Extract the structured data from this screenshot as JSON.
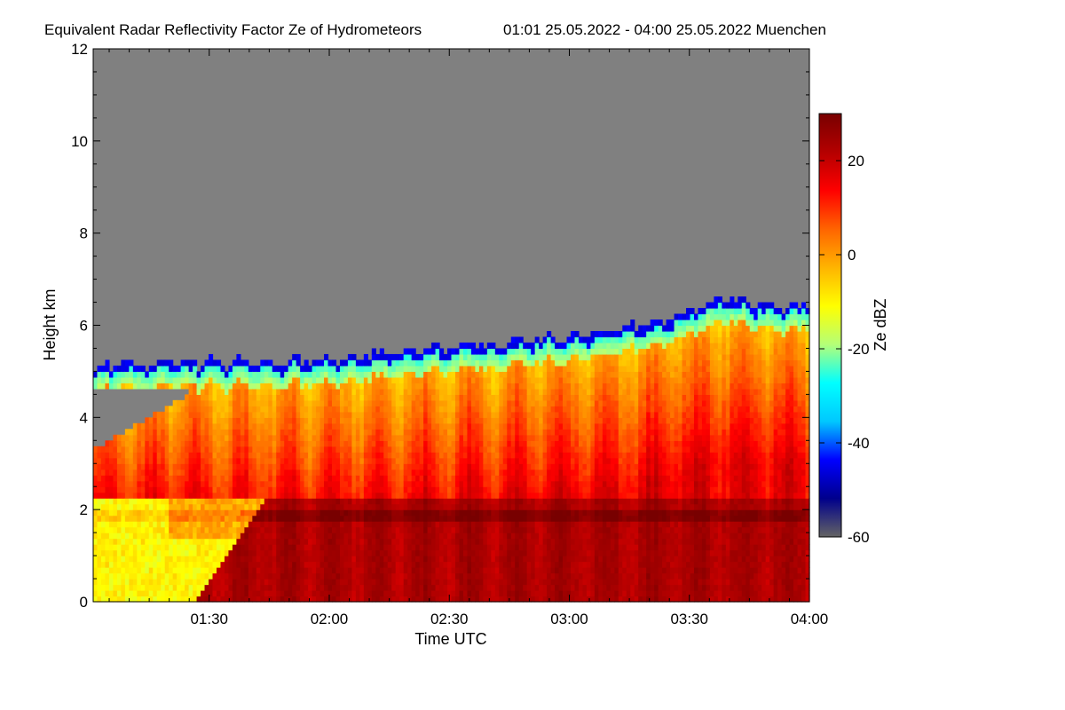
{
  "chart_data": {
    "type": "heatmap",
    "title": "Equivalent Radar Reflectivity Factor Ze of Hydrometeors",
    "subtitle": "01:01 25.05.2022 - 04:00 25.05.2022 Muenchen",
    "xlabel": "Time UTC",
    "ylabel": "Height km",
    "colorbar_label": "Ze dBZ",
    "x_range_minutes": [
      61,
      240
    ],
    "x_ticks": [
      {
        "label": "01:30",
        "minutes": 90
      },
      {
        "label": "02:00",
        "minutes": 120
      },
      {
        "label": "02:30",
        "minutes": 150
      },
      {
        "label": "03:00",
        "minutes": 180
      },
      {
        "label": "03:30",
        "minutes": 210
      },
      {
        "label": "04:00",
        "minutes": 240
      }
    ],
    "ylim": [
      0,
      12
    ],
    "y_ticks": [
      0,
      2,
      4,
      6,
      8,
      10,
      12
    ],
    "colorbar_range": [
      -60,
      30
    ],
    "colorbar_ticks": [
      -60,
      -40,
      -20,
      0,
      20
    ],
    "background_color": "#808080",
    "colormap": [
      "#646464",
      "#00008c",
      "#0000ff",
      "#00c8ff",
      "#00ffff",
      "#b4ff78",
      "#ffff00",
      "#ffb400",
      "#ff6400",
      "#ff0000",
      "#b40000",
      "#780000"
    ],
    "cloud_top_km": [
      {
        "t": 61,
        "h": 5.1
      },
      {
        "t": 70,
        "h": 5.15
      },
      {
        "t": 80,
        "h": 5.2
      },
      {
        "t": 90,
        "h": 5.2
      },
      {
        "t": 100,
        "h": 5.2
      },
      {
        "t": 110,
        "h": 5.2
      },
      {
        "t": 120,
        "h": 5.25
      },
      {
        "t": 130,
        "h": 5.35
      },
      {
        "t": 140,
        "h": 5.45
      },
      {
        "t": 150,
        "h": 5.5
      },
      {
        "t": 160,
        "h": 5.6
      },
      {
        "t": 170,
        "h": 5.7
      },
      {
        "t": 180,
        "h": 5.75
      },
      {
        "t": 190,
        "h": 5.9
      },
      {
        "t": 200,
        "h": 6.0
      },
      {
        "t": 210,
        "h": 6.3
      },
      {
        "t": 220,
        "h": 6.6
      },
      {
        "t": 230,
        "h": 6.4
      },
      {
        "t": 240,
        "h": 6.4
      }
    ],
    "melting_layer_km": 1.9,
    "rain_onset_minutes": 105,
    "rain_ze_dbz": 23,
    "early_low_ze_dbz": -10
  }
}
